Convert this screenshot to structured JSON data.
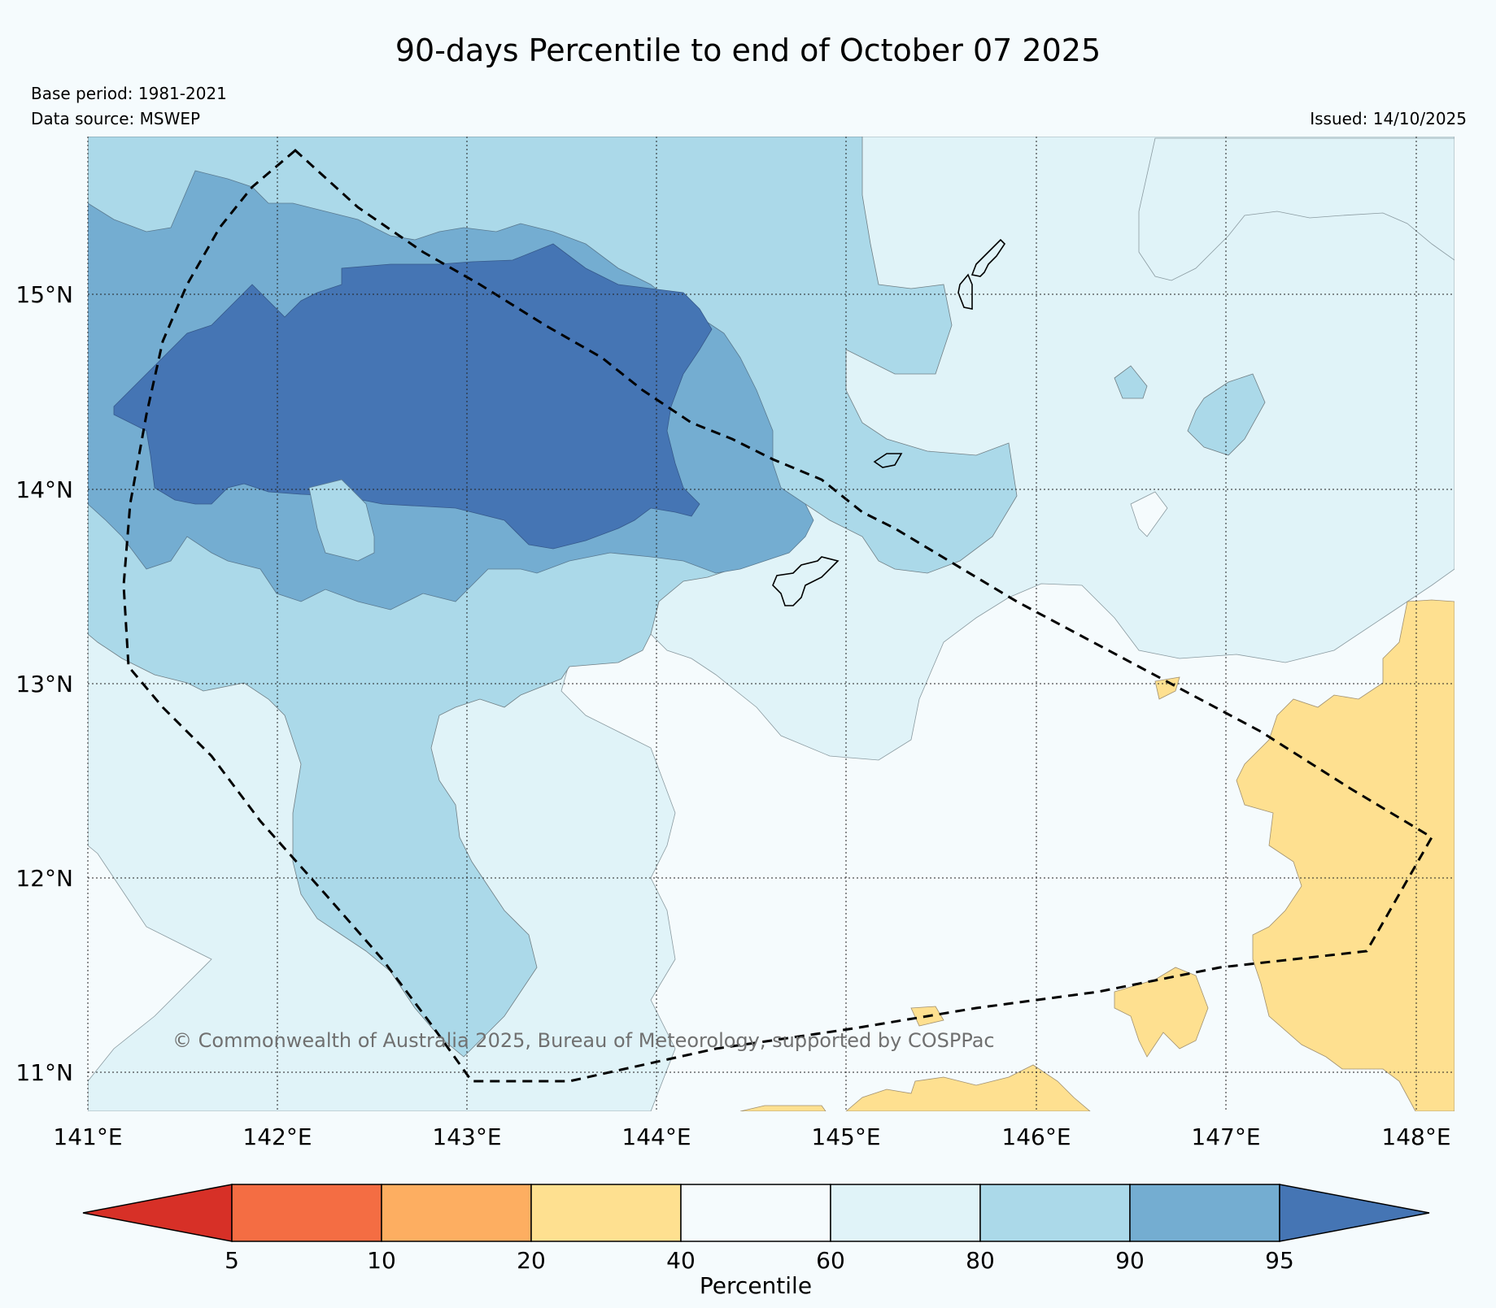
{
  "title": "90-days Percentile to end of October 07 2025",
  "base_period": "Base period: 1981-2021",
  "data_source": "Data source: MSWEP",
  "issued": "Issued: 14/10/2025",
  "copyright": "© Commonwealth of Australia 2025, Bureau of Meteorology, supported by COSPPac",
  "longitude_labels": [
    "141°E",
    "142°E",
    "143°E",
    "144°E",
    "145°E",
    "146°E",
    "147°E",
    "148°E"
  ],
  "latitude_labels": [
    "15°N",
    "14°N",
    "13°N",
    "12°N",
    "11°N"
  ],
  "colorbar": {
    "label": "Percentile",
    "ticks": [
      "5",
      "10",
      "20",
      "40",
      "60",
      "80",
      "90",
      "95"
    ],
    "colors": {
      "below_5": "#d73027",
      "p5_10": "#f46d43",
      "p10_20": "#fdae61",
      "p20_40": "#fee090",
      "p40_60": "#f5fbfd",
      "p60_80": "#e0f3f8",
      "p80_90": "#abd9e9",
      "p90_95": "#74add1",
      "above_95": "#4575b4"
    }
  }
}
